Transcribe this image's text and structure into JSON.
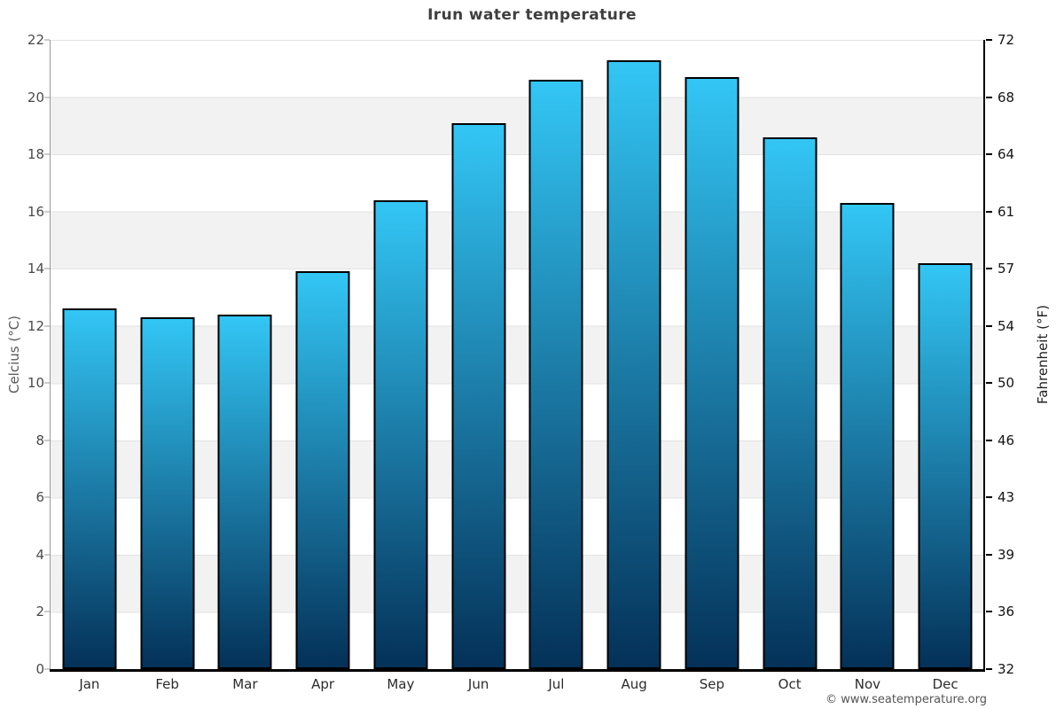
{
  "title": "Irun water temperature",
  "footer": "© www.seatemperature.org",
  "colors": {
    "bar_gradient_top": "#33c6f5",
    "bar_gradient_bottom": "#043158",
    "bar_border": "#000000",
    "band_gray": "#f2f2f2",
    "band_white": "#ffffff",
    "left_axis_line": "#9a9a9a",
    "right_axis_line": "#000000",
    "title_color": "#3f3f3f"
  },
  "chart_data": {
    "type": "bar",
    "title": "Irun water temperature",
    "categories": [
      "Jan",
      "Feb",
      "Mar",
      "Apr",
      "May",
      "Jun",
      "Jul",
      "Aug",
      "Sep",
      "Oct",
      "Nov",
      "Dec"
    ],
    "values": [
      12.6,
      12.3,
      12.4,
      13.9,
      16.4,
      19.1,
      20.6,
      21.3,
      20.7,
      18.6,
      16.3,
      14.2
    ],
    "xlabel": "",
    "y_left": {
      "label": "Celcius (°C)",
      "ticks": [
        "0",
        "2",
        "4",
        "6",
        "8",
        "10",
        "12",
        "14",
        "16",
        "18",
        "20",
        "22"
      ],
      "lim": [
        0,
        22
      ]
    },
    "y_right": {
      "label": "Fahrenheit (°F)",
      "ticks": [
        "32",
        "36",
        "39",
        "43",
        "46",
        "50",
        "54",
        "57",
        "61",
        "64",
        "68",
        "72"
      ]
    },
    "legend": "none",
    "grid": "horizontal alternating bands every 2°C",
    "annotation": "© www.seatemperature.org"
  }
}
